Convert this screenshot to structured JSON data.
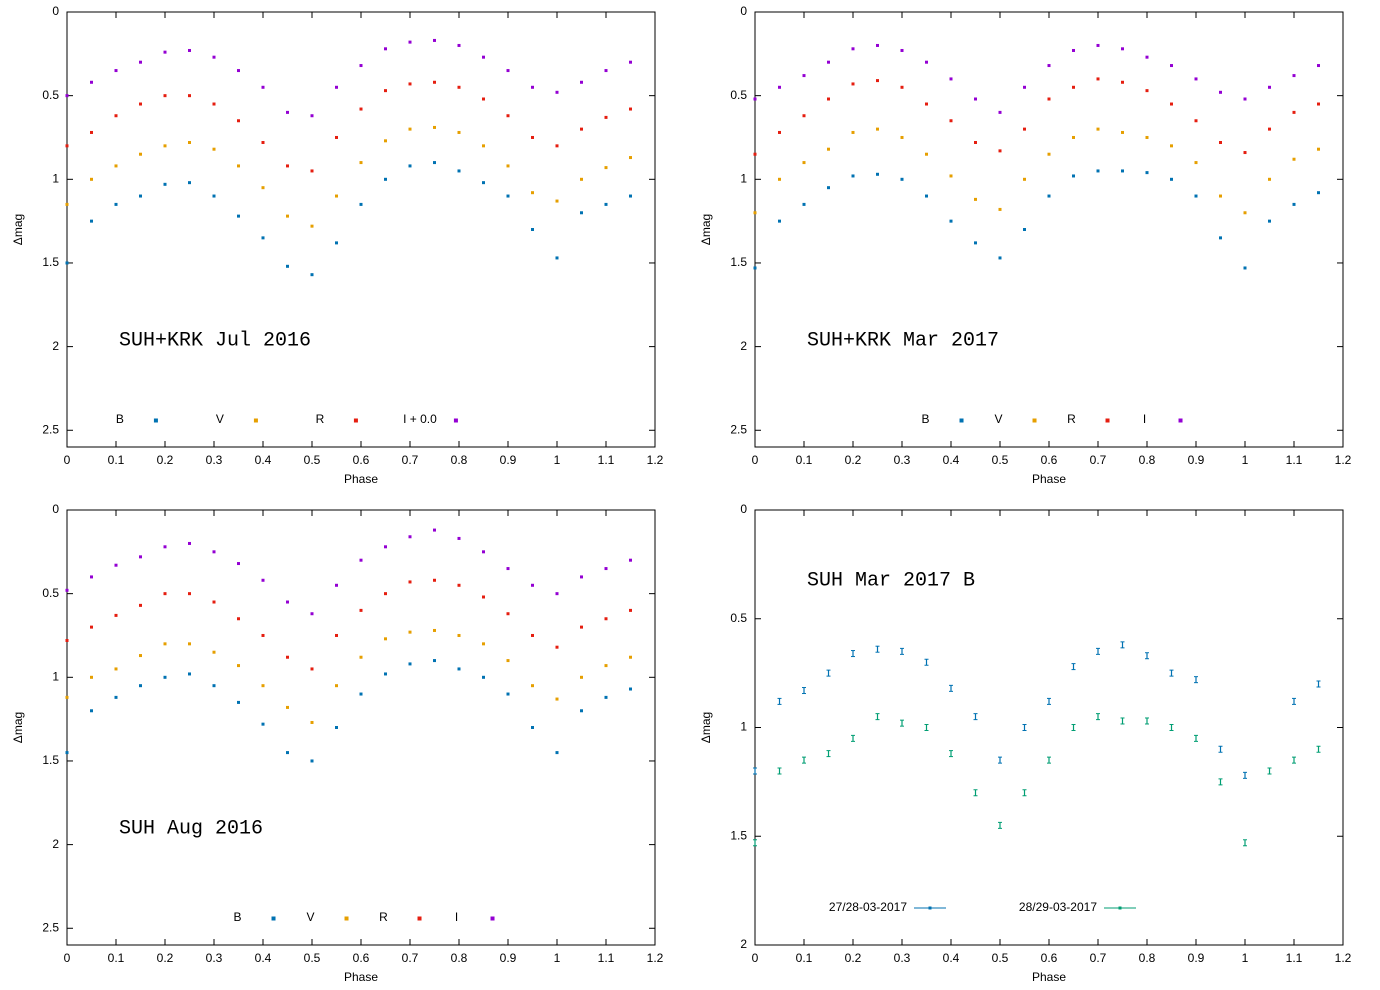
{
  "chart_data": [
    {
      "type": "scatter",
      "annotation": "SUH+KRK Jul 2016",
      "xlabel": "Phase",
      "ylabel": "Δmag",
      "xlim": [
        0,
        1.2
      ],
      "ylim": [
        2.6,
        0
      ],
      "xticks": [
        0,
        0.1,
        0.2,
        0.3,
        0.4,
        0.5,
        0.6,
        0.7,
        0.8,
        0.9,
        1,
        1.1,
        1.2
      ],
      "yticks": [
        0,
        0.5,
        1,
        1.5,
        2,
        2.5
      ],
      "legend": "bottom",
      "x": [
        0,
        0.05,
        0.1,
        0.15,
        0.2,
        0.25,
        0.3,
        0.35,
        0.4,
        0.45,
        0.5,
        0.55,
        0.6,
        0.65,
        0.7,
        0.75,
        0.8,
        0.85,
        0.9,
        0.95,
        1.0,
        1.05,
        1.1,
        1.15
      ],
      "series": [
        {
          "name": "B",
          "color": "#0072b2",
          "values": [
            1.5,
            1.25,
            1.15,
            1.1,
            1.03,
            1.02,
            1.1,
            1.22,
            1.35,
            1.52,
            1.57,
            1.38,
            1.15,
            1.0,
            0.92,
            0.9,
            0.95,
            1.02,
            1.1,
            1.3,
            1.47,
            1.2,
            1.15,
            1.1
          ]
        },
        {
          "name": "V",
          "color": "#e69f00",
          "values": [
            1.15,
            1.0,
            0.92,
            0.85,
            0.8,
            0.78,
            0.82,
            0.92,
            1.05,
            1.22,
            1.28,
            1.1,
            0.9,
            0.77,
            0.7,
            0.69,
            0.72,
            0.8,
            0.92,
            1.08,
            1.13,
            1.0,
            0.93,
            0.87
          ]
        },
        {
          "name": "R",
          "color": "#e51e10",
          "values": [
            0.8,
            0.72,
            0.62,
            0.55,
            0.5,
            0.5,
            0.55,
            0.65,
            0.78,
            0.92,
            0.95,
            0.75,
            0.58,
            0.47,
            0.43,
            0.42,
            0.45,
            0.52,
            0.62,
            0.75,
            0.8,
            0.7,
            0.63,
            0.58
          ]
        },
        {
          "name": "I + 0.0",
          "color": "#9400d3",
          "values": [
            0.5,
            0.42,
            0.35,
            0.3,
            0.24,
            0.23,
            0.27,
            0.35,
            0.45,
            0.6,
            0.62,
            0.45,
            0.32,
            0.22,
            0.18,
            0.17,
            0.2,
            0.27,
            0.35,
            0.45,
            0.48,
            0.42,
            0.35,
            0.3
          ]
        }
      ]
    },
    {
      "type": "scatter",
      "annotation": "SUH+KRK Mar 2017",
      "xlabel": "Phase",
      "ylabel": "Δmag",
      "xlim": [
        0,
        1.2
      ],
      "ylim": [
        2.6,
        0
      ],
      "xticks": [
        0,
        0.1,
        0.2,
        0.3,
        0.4,
        0.5,
        0.6,
        0.7,
        0.8,
        0.9,
        1,
        1.1,
        1.2
      ],
      "yticks": [
        0,
        0.5,
        1,
        1.5,
        2,
        2.5
      ],
      "legend": "bottom",
      "x": [
        0,
        0.05,
        0.1,
        0.15,
        0.2,
        0.25,
        0.3,
        0.35,
        0.4,
        0.45,
        0.5,
        0.55,
        0.6,
        0.65,
        0.7,
        0.75,
        0.8,
        0.85,
        0.9,
        0.95,
        1.0,
        1.05,
        1.1,
        1.15
      ],
      "series": [
        {
          "name": "B",
          "color": "#0072b2",
          "values": [
            1.53,
            1.25,
            1.15,
            1.05,
            0.98,
            0.97,
            1.0,
            1.1,
            1.25,
            1.38,
            1.47,
            1.3,
            1.1,
            0.98,
            0.95,
            0.95,
            0.96,
            1.0,
            1.1,
            1.35,
            1.53,
            1.25,
            1.15,
            1.08
          ]
        },
        {
          "name": "V",
          "color": "#e69f00",
          "values": [
            1.2,
            1.0,
            0.9,
            0.82,
            0.72,
            0.7,
            0.75,
            0.85,
            0.98,
            1.12,
            1.18,
            1.0,
            0.85,
            0.75,
            0.7,
            0.72,
            0.75,
            0.8,
            0.9,
            1.1,
            1.2,
            1.0,
            0.88,
            0.82
          ]
        },
        {
          "name": "R",
          "color": "#e51e10",
          "values": [
            0.85,
            0.72,
            0.62,
            0.52,
            0.43,
            0.41,
            0.45,
            0.55,
            0.65,
            0.78,
            0.83,
            0.7,
            0.52,
            0.45,
            0.4,
            0.42,
            0.47,
            0.55,
            0.65,
            0.78,
            0.84,
            0.7,
            0.6,
            0.55
          ]
        },
        {
          "name": "I",
          "color": "#9400d3",
          "values": [
            0.52,
            0.45,
            0.38,
            0.3,
            0.22,
            0.2,
            0.23,
            0.3,
            0.4,
            0.52,
            0.6,
            0.45,
            0.32,
            0.23,
            0.2,
            0.22,
            0.27,
            0.32,
            0.4,
            0.48,
            0.52,
            0.45,
            0.38,
            0.32
          ]
        }
      ]
    },
    {
      "type": "scatter",
      "annotation": "SUH Aug 2016",
      "xlabel": "Phase",
      "ylabel": "Δmag",
      "xlim": [
        0,
        1.2
      ],
      "ylim": [
        2.6,
        0
      ],
      "xticks": [
        0,
        0.1,
        0.2,
        0.3,
        0.4,
        0.5,
        0.6,
        0.7,
        0.8,
        0.9,
        1,
        1.1,
        1.2
      ],
      "yticks": [
        0,
        0.5,
        1,
        1.5,
        2,
        2.5
      ],
      "legend": "bottom",
      "x": [
        0,
        0.05,
        0.1,
        0.15,
        0.2,
        0.25,
        0.3,
        0.35,
        0.4,
        0.45,
        0.5,
        0.55,
        0.6,
        0.65,
        0.7,
        0.75,
        0.8,
        0.85,
        0.9,
        0.95,
        1.0,
        1.05,
        1.1,
        1.15
      ],
      "series": [
        {
          "name": "B",
          "color": "#0072b2",
          "values": [
            1.45,
            1.2,
            1.12,
            1.05,
            1.0,
            0.98,
            1.05,
            1.15,
            1.28,
            1.45,
            1.5,
            1.3,
            1.1,
            0.98,
            0.92,
            0.9,
            0.95,
            1.0,
            1.1,
            1.3,
            1.45,
            1.2,
            1.12,
            1.07
          ]
        },
        {
          "name": "V",
          "color": "#e69f00",
          "values": [
            1.12,
            1.0,
            0.95,
            0.87,
            0.8,
            0.8,
            0.85,
            0.93,
            1.05,
            1.18,
            1.27,
            1.05,
            0.88,
            0.77,
            0.73,
            0.72,
            0.75,
            0.8,
            0.9,
            1.05,
            1.13,
            1.0,
            0.93,
            0.88
          ]
        },
        {
          "name": "R",
          "color": "#e51e10",
          "values": [
            0.78,
            0.7,
            0.63,
            0.57,
            0.5,
            0.5,
            0.55,
            0.65,
            0.75,
            0.88,
            0.95,
            0.75,
            0.6,
            0.5,
            0.43,
            0.42,
            0.45,
            0.52,
            0.62,
            0.75,
            0.82,
            0.7,
            0.65,
            0.6
          ]
        },
        {
          "name": "I",
          "color": "#9400d3",
          "values": [
            0.48,
            0.4,
            0.33,
            0.28,
            0.22,
            0.2,
            0.25,
            0.32,
            0.42,
            0.55,
            0.62,
            0.45,
            0.3,
            0.22,
            0.16,
            0.12,
            0.17,
            0.25,
            0.35,
            0.45,
            0.5,
            0.4,
            0.35,
            0.3
          ]
        }
      ]
    },
    {
      "type": "scatter",
      "annotation": "SUH Mar 2017  B",
      "xlabel": "Phase",
      "ylabel": "Δmag",
      "xlim": [
        0,
        1.2
      ],
      "ylim": [
        2,
        0
      ],
      "xticks": [
        0,
        0.1,
        0.2,
        0.3,
        0.4,
        0.5,
        0.6,
        0.7,
        0.8,
        0.9,
        1,
        1.1,
        1.2
      ],
      "yticks": [
        0,
        0.5,
        1,
        1.5,
        2
      ],
      "legend": "bottom",
      "x": [
        0,
        0.05,
        0.1,
        0.15,
        0.2,
        0.25,
        0.3,
        0.35,
        0.4,
        0.45,
        0.5,
        0.55,
        0.6,
        0.65,
        0.7,
        0.75,
        0.8,
        0.85,
        0.9,
        0.95,
        1.0,
        1.05,
        1.1,
        1.15
      ],
      "series": [
        {
          "name": "27/28-03-2017",
          "color": "#0072b2",
          "values": [
            1.2,
            0.88,
            0.83,
            0.75,
            0.66,
            0.64,
            0.65,
            0.7,
            0.82,
            0.95,
            1.15,
            1.0,
            0.88,
            0.72,
            0.65,
            0.62,
            0.67,
            0.75,
            0.78,
            1.1,
            1.22,
            null,
            0.88,
            0.8
          ]
        },
        {
          "name": "28/29-03-2017",
          "color": "#009e73",
          "values": [
            1.53,
            1.2,
            1.15,
            1.12,
            1.05,
            0.95,
            0.98,
            1.0,
            1.12,
            1.3,
            1.45,
            1.3,
            1.15,
            1.0,
            0.95,
            0.97,
            0.97,
            1.0,
            1.05,
            1.25,
            1.53,
            1.2,
            1.15,
            1.1
          ]
        }
      ]
    }
  ]
}
